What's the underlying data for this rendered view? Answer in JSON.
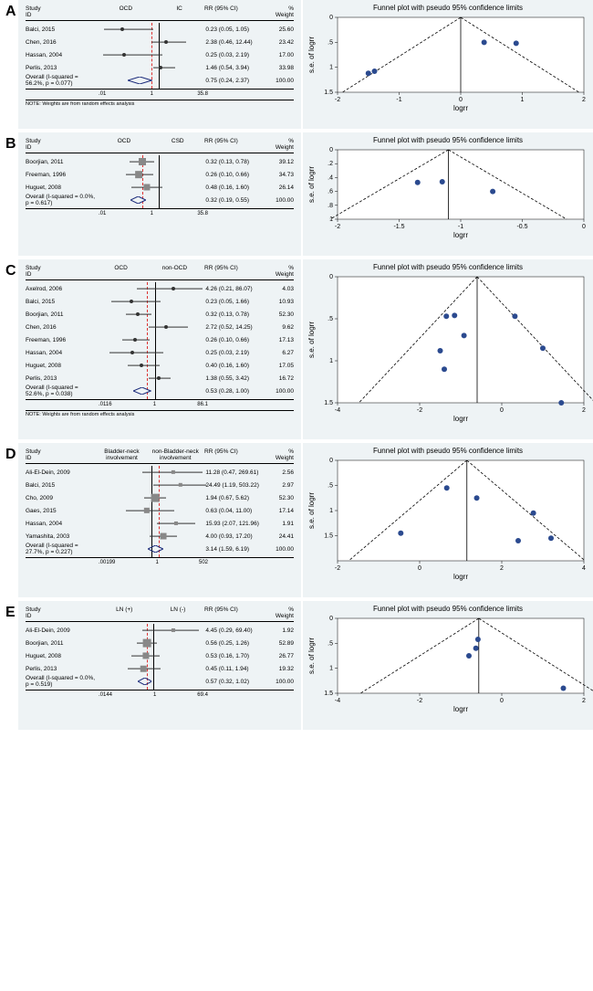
{
  "panels": [
    {
      "label": "A",
      "groups": [
        "OCD",
        "IC"
      ],
      "studies": [
        {
          "name": "Balci, 2015",
          "rr": "0.23 (0.05, 1.05)",
          "wt": "25.60",
          "ci": [
            5,
            50
          ],
          "pt": 22,
          "shape": "dot"
        },
        {
          "name": "Chen, 2016",
          "rr": "2.38 (0.46, 12.44)",
          "wt": "23.42",
          "ci": [
            48,
            80
          ],
          "pt": 62,
          "shape": "dot"
        },
        {
          "name": "Hassan, 2004",
          "rr": "0.25 (0.03, 2.19)",
          "wt": "17.00",
          "ci": [
            4,
            58
          ],
          "pt": 23,
          "shape": "dot"
        },
        {
          "name": "Perlis, 2013",
          "rr": "1.46 (0.54, 3.94)",
          "wt": "33.98",
          "ci": [
            50,
            70
          ],
          "pt": 57,
          "shape": "dot"
        }
      ],
      "overall": {
        "label": "Overall (I-squared = 56.2%, p = 0.077)",
        "rr": "0.75 (0.24, 2.37)",
        "wt": "100.00",
        "diamond": {
          "x": 38,
          "w": 22
        }
      },
      "note": "NOTE: Weights are from random effects analysis",
      "axis": [
        ".01",
        "1",
        "35.8"
      ],
      "vline": 55,
      "vdash": 48,
      "funnel": {
        "points": [
          [
            -1.5,
            1.12
          ],
          [
            0.9,
            0.52
          ],
          [
            -1.4,
            1.08
          ],
          [
            0.38,
            0.5
          ]
        ],
        "xrange": [
          -2,
          2
        ],
        "yrange": [
          0,
          1.5
        ],
        "xticks": [
          -2,
          -1,
          0,
          1,
          2
        ],
        "yticks": [
          0,
          0.5,
          1,
          1.5
        ],
        "yticklabels": [
          "0",
          ".5",
          "1",
          "1.5"
        ],
        "apex_x": 0
      }
    },
    {
      "label": "B",
      "groups": [
        "OCD",
        "CSD"
      ],
      "studies": [
        {
          "name": "Boorjian, 2011",
          "rr": "0.32 (0.13, 0.78)",
          "wt": "39.12",
          "ci": [
            28,
            51
          ],
          "pt": 40,
          "shape": "box"
        },
        {
          "name": "Freeman, 1996",
          "rr": "0.26 (0.10, 0.66)",
          "wt": "34.73",
          "ci": [
            25,
            50
          ],
          "pt": 37,
          "shape": "box"
        },
        {
          "name": "Huguet, 2008",
          "rr": "0.48 (0.16, 1.60)",
          "wt": "26.14",
          "ci": [
            30,
            58
          ],
          "pt": 44,
          "shape": "box"
        }
      ],
      "overall": {
        "label": "Overall (I-squared = 0.0%, p = 0.617)",
        "rr": "0.32 (0.19, 0.55)",
        "wt": "100.00",
        "diamond": {
          "x": 36,
          "w": 14
        }
      },
      "axis": [
        ".01",
        "1",
        "35.8"
      ],
      "vline": 55,
      "vdash": 40,
      "funnel": {
        "points": [
          [
            -1.15,
            0.46
          ],
          [
            -1.35,
            0.47
          ],
          [
            -0.74,
            0.6
          ]
        ],
        "xrange": [
          -2,
          0
        ],
        "yrange": [
          0,
          1
        ],
        "xticks": [
          -2,
          -1.5,
          -1,
          -0.5,
          0
        ],
        "yticks": [
          0,
          0.2,
          0.4,
          0.6,
          0.8,
          1
        ],
        "yticklabels": [
          "0",
          ".2",
          ".4",
          ".6",
          ".8",
          "1"
        ],
        "apex_x": -1.1
      }
    },
    {
      "label": "C",
      "groups": [
        "OCD",
        "non-OCD"
      ],
      "studies": [
        {
          "name": "Axelrod, 2006",
          "rr": "4.26 (0.21, 86.07)",
          "wt": "4.03",
          "ci": [
            35,
            95
          ],
          "pt": 68,
          "shape": "dot"
        },
        {
          "name": "Balci, 2015",
          "rr": "0.23 (0.05, 1.66)",
          "wt": "10.93",
          "ci": [
            12,
            57
          ],
          "pt": 30,
          "shape": "dot"
        },
        {
          "name": "Boorjian, 2011",
          "rr": "0.32 (0.13, 0.78)",
          "wt": "52.30",
          "ci": [
            25,
            48
          ],
          "pt": 36,
          "shape": "dot"
        },
        {
          "name": "Chen, 2016",
          "rr": "2.72 (0.52, 14.25)",
          "wt": "9.62",
          "ci": [
            46,
            82
          ],
          "pt": 62,
          "shape": "dot"
        },
        {
          "name": "Freeman, 1996",
          "rr": "0.26 (0.10, 0.66)",
          "wt": "17.13",
          "ci": [
            22,
            47
          ],
          "pt": 33,
          "shape": "dot"
        },
        {
          "name": "Hassan, 2004",
          "rr": "0.25 (0.03, 2.19)",
          "wt": "6.27",
          "ci": [
            10,
            59
          ],
          "pt": 31,
          "shape": "dot"
        },
        {
          "name": "Huguet, 2008",
          "rr": "0.40 (0.16, 1.60)",
          "wt": "17.05",
          "ci": [
            27,
            56
          ],
          "pt": 39,
          "shape": "dot"
        },
        {
          "name": "Perlis, 2013",
          "rr": "1.38 (0.55, 3.42)",
          "wt": "16.72",
          "ci": [
            46,
            66
          ],
          "pt": 55,
          "shape": "dot"
        }
      ],
      "overall": {
        "label": "Overall (I-squared = 52.6%, p = 0.038)",
        "rr": "0.53 (0.28, 1.00)",
        "wt": "100.00",
        "diamond": {
          "x": 40,
          "w": 16
        }
      },
      "note": "NOTE: Weights are from random effects analysis",
      "axis": [
        ".0116",
        "1",
        "86.1"
      ],
      "vline": 52,
      "vdash": 44,
      "funnel": {
        "points": [
          [
            1.45,
            1.5
          ],
          [
            -1.5,
            0.88
          ],
          [
            -1.15,
            0.46
          ],
          [
            1.0,
            0.85
          ],
          [
            -1.35,
            0.47
          ],
          [
            -1.4,
            1.1
          ],
          [
            -0.92,
            0.7
          ],
          [
            0.32,
            0.47
          ]
        ],
        "xrange": [
          -4,
          2
        ],
        "yrange": [
          0,
          1.5
        ],
        "xticks": [
          -4,
          -2,
          0,
          2
        ],
        "yticks": [
          0,
          0.5,
          1,
          1.5
        ],
        "yticklabels": [
          "0",
          ".5",
          "1",
          "1.5"
        ],
        "apex_x": -0.6
      }
    },
    {
      "label": "D",
      "groups": [
        "Bladder-neck involvement",
        "non-Bladder-neck involvement"
      ],
      "studies": [
        {
          "name": "Ali-El-Dein, 2009",
          "rr": "11.28 (0.47, 269.61)",
          "wt": "2.56",
          "ci": [
            40,
            95
          ],
          "pt": 68,
          "shape": "box"
        },
        {
          "name": "Balci, 2015",
          "rr": "24.49 (1.19, 503.22)",
          "wt": "2.97",
          "ci": [
            50,
            98
          ],
          "pt": 75,
          "shape": "box"
        },
        {
          "name": "Cho, 2009",
          "rr": "1.94 (0.67, 5.62)",
          "wt": "52.30",
          "ci": [
            42,
            62
          ],
          "pt": 52,
          "shape": "box"
        },
        {
          "name": "Gaes, 2015",
          "rr": "0.63 (0.04, 11.00)",
          "wt": "17.14",
          "ci": [
            25,
            69
          ],
          "pt": 44,
          "shape": "box"
        },
        {
          "name": "Hassan, 2004",
          "rr": "15.93 (2.07, 121.96)",
          "wt": "1.91",
          "ci": [
            53,
            88
          ],
          "pt": 71,
          "shape": "box"
        },
        {
          "name": "Yamashita, 2003",
          "rr": "4.00 (0.93, 17.20)",
          "wt": "24.41",
          "ci": [
            47,
            72
          ],
          "pt": 59,
          "shape": "box"
        }
      ],
      "overall": {
        "label": "Overall (I-squared = 27.7%, p = 0.227)",
        "rr": "3.14 (1.59, 6.19)",
        "wt": "100.00",
        "diamond": {
          "x": 52,
          "w": 14
        }
      },
      "axis": [
        ".00199",
        "1",
        "502"
      ],
      "vline": 48,
      "vdash": 55,
      "funnel": {
        "points": [
          [
            2.4,
            1.6
          ],
          [
            3.2,
            1.55
          ],
          [
            0.66,
            0.55
          ],
          [
            -0.46,
            1.45
          ],
          [
            2.77,
            1.05
          ],
          [
            1.39,
            0.75
          ]
        ],
        "xrange": [
          -2,
          4
        ],
        "yrange": [
          0,
          2
        ],
        "xticks": [
          -2,
          0,
          2,
          4
        ],
        "yticks": [
          0,
          0.5,
          1,
          1.5
        ],
        "yticklabels": [
          "0",
          ".5",
          "1",
          "1.5"
        ],
        "apex_x": 1.15
      }
    },
    {
      "label": "E",
      "groups": [
        "LN (+)",
        "LN (-)"
      ],
      "studies": [
        {
          "name": "Ali-El-Dein, 2009",
          "rr": "4.45 (0.29, 69.40)",
          "wt": "1.92",
          "ci": [
            40,
            92
          ],
          "pt": 68,
          "shape": "box"
        },
        {
          "name": "Boorjian, 2011",
          "rr": "0.56 (0.25, 1.26)",
          "wt": "52.89",
          "ci": [
            35,
            53
          ],
          "pt": 44,
          "shape": "box"
        },
        {
          "name": "Huguet, 2008",
          "rr": "0.53 (0.16, 1.70)",
          "wt": "26.77",
          "ci": [
            30,
            56
          ],
          "pt": 43,
          "shape": "box"
        },
        {
          "name": "Perlis, 2013",
          "rr": "0.45 (0.11, 1.94)",
          "wt": "19.32",
          "ci": [
            27,
            57
          ],
          "pt": 41,
          "shape": "box"
        }
      ],
      "overall": {
        "label": "Overall (I-squared = 0.0%, p = 0.519)",
        "rr": "0.57 (0.32, 1.02)",
        "wt": "100.00",
        "diamond": {
          "x": 42,
          "w": 13
        }
      },
      "axis": [
        ".0144",
        "1",
        "69.4"
      ],
      "vline": 50,
      "vdash": 44,
      "funnel": {
        "points": [
          [
            1.5,
            1.4
          ],
          [
            -0.58,
            0.42
          ],
          [
            -0.63,
            0.6
          ],
          [
            -0.8,
            0.75
          ]
        ],
        "xrange": [
          -4,
          2
        ],
        "yrange": [
          0,
          1.5
        ],
        "xticks": [
          -4,
          -2,
          0,
          2
        ],
        "yticks": [
          0,
          0.5,
          1,
          1.5
        ],
        "yticklabels": [
          "0",
          ".5",
          "1",
          "1.5"
        ],
        "apex_x": -0.56
      }
    }
  ],
  "funnel_title": "Funnel plot with pseudo 95% confidence limits",
  "ylabel": "s.e. of logrr",
  "xlabel": "logrr",
  "colors": {
    "bg": "#eef3f5",
    "dot": "#2b4a8f",
    "line": "#333",
    "dash": "#d33",
    "diamond_stroke": "#1a2a7a",
    "box": "#999"
  },
  "header_labels": {
    "study": "Study",
    "id": "ID",
    "rr": "RR (95% CI)",
    "weight": "Weight",
    "pct": "%"
  }
}
